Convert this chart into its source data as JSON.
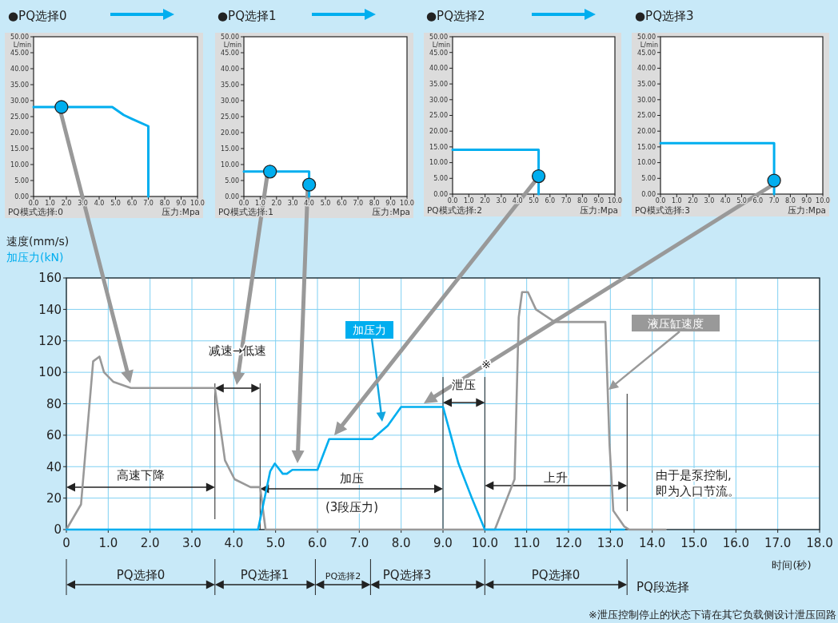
{
  "chart_data": [
    {
      "type": "line",
      "title": "●PQ选择0",
      "xlabel": "压力:Mpa",
      "ylabel": "L/min",
      "annotations": [
        "PQ模式选择:0"
      ],
      "grid": false,
      "legend": false,
      "xlim": [
        0,
        10
      ],
      "ylim": [
        0,
        50
      ],
      "xticks": [
        {
          "value": 0,
          "label": "0.0"
        },
        {
          "value": 1,
          "label": "1.0"
        },
        {
          "value": 2,
          "label": "2.0"
        },
        {
          "value": 3,
          "label": "3.0"
        },
        {
          "value": 4,
          "label": "4.0"
        },
        {
          "value": 5,
          "label": "5.0"
        },
        {
          "value": 6,
          "label": "6.0"
        },
        {
          "value": 7,
          "label": "7.0"
        },
        {
          "value": 8,
          "label": "8.0"
        },
        {
          "value": 9,
          "label": "9.0"
        },
        {
          "value": 10,
          "label": "10.0"
        }
      ],
      "yticks": [
        {
          "value": 0,
          "label": "0.00"
        },
        {
          "value": 5,
          "label": "5.00"
        },
        {
          "value": 10,
          "label": "10.00"
        },
        {
          "value": 15,
          "label": "15.00"
        },
        {
          "value": 20,
          "label": "20.00"
        },
        {
          "value": 25,
          "label": "25.00"
        },
        {
          "value": 30,
          "label": "30.00"
        },
        {
          "value": 35,
          "label": "35.00"
        },
        {
          "value": 40,
          "label": "40.00"
        },
        {
          "value": 45,
          "label": "45.00"
        },
        {
          "value": 50,
          "label": "50.00"
        }
      ],
      "series": [
        {
          "color": "#00aeef",
          "x": [
            0,
            4.8,
            5.5,
            6.0,
            7.0,
            7.0
          ],
          "values": [
            28,
            28,
            25.5,
            24.3,
            22,
            0
          ]
        },
        {
          "type": "scatter",
          "marker": "circle",
          "color": "#00aeef",
          "x": [
            1.7
          ],
          "values": [
            28
          ]
        }
      ]
    },
    {
      "type": "line",
      "title": "●PQ选择1",
      "xlabel": "压力:Mpa",
      "ylabel": "L/min",
      "annotations": [
        "PQ模式选择:1"
      ],
      "grid": false,
      "legend": false,
      "xlim": [
        0,
        10
      ],
      "ylim": [
        0,
        50
      ],
      "xticks": [
        {
          "value": 0,
          "label": "0.0"
        },
        {
          "value": 1,
          "label": "1.0"
        },
        {
          "value": 2,
          "label": "2.0"
        },
        {
          "value": 3,
          "label": "3.0"
        },
        {
          "value": 4,
          "label": "4.0"
        },
        {
          "value": 5,
          "label": "5.0"
        },
        {
          "value": 6,
          "label": "6.0"
        },
        {
          "value": 7,
          "label": "7.0"
        },
        {
          "value": 8,
          "label": "8.0"
        },
        {
          "value": 9,
          "label": "9.0"
        },
        {
          "value": 10,
          "label": "10.0"
        }
      ],
      "yticks": [
        {
          "value": 0,
          "label": "0.00"
        },
        {
          "value": 5,
          "label": "5.00"
        },
        {
          "value": 10,
          "label": "10.00"
        },
        {
          "value": 15,
          "label": "15.00"
        },
        {
          "value": 20,
          "label": "20.00"
        },
        {
          "value": 25,
          "label": "25.00"
        },
        {
          "value": 30,
          "label": "30.00"
        },
        {
          "value": 35,
          "label": "35.00"
        },
        {
          "value": 40,
          "label": "40.00"
        },
        {
          "value": 45,
          "label": "45.00"
        },
        {
          "value": 50,
          "label": "50.00"
        }
      ],
      "series": [
        {
          "color": "#00aeef",
          "x": [
            0,
            4.0,
            4.0
          ],
          "values": [
            7.8,
            7.8,
            0
          ]
        },
        {
          "type": "scatter",
          "marker": "circle",
          "color": "#00aeef",
          "x": [
            1.6,
            4.0
          ],
          "values": [
            7.8,
            3.7
          ]
        }
      ]
    },
    {
      "type": "line",
      "title": "●PQ选择2",
      "xlabel": "压力:Mpa",
      "ylabel": "L/min",
      "annotations": [
        "PQ模式选择:2"
      ],
      "grid": false,
      "legend": false,
      "xlim": [
        0,
        10
      ],
      "ylim": [
        0,
        50
      ],
      "xticks": [
        {
          "value": 0,
          "label": "0.0"
        },
        {
          "value": 1,
          "label": "1.0"
        },
        {
          "value": 2,
          "label": "2.0"
        },
        {
          "value": 3,
          "label": "3.0"
        },
        {
          "value": 4,
          "label": "4.0"
        },
        {
          "value": 5,
          "label": "5.0"
        },
        {
          "value": 6,
          "label": "6.0"
        },
        {
          "value": 7,
          "label": "7.0"
        },
        {
          "value": 8,
          "label": "8.0"
        },
        {
          "value": 9,
          "label": "9.0"
        },
        {
          "value": 10,
          "label": "10.0"
        }
      ],
      "yticks": [
        {
          "value": 0,
          "label": "0.00"
        },
        {
          "value": 5,
          "label": "5.00"
        },
        {
          "value": 10,
          "label": "10.00"
        },
        {
          "value": 15,
          "label": "15.00"
        },
        {
          "value": 20,
          "label": "20.00"
        },
        {
          "value": 25,
          "label": "25.00"
        },
        {
          "value": 30,
          "label": "30.00"
        },
        {
          "value": 35,
          "label": "35.00"
        },
        {
          "value": 40,
          "label": "40.00"
        },
        {
          "value": 45,
          "label": "45.00"
        },
        {
          "value": 50,
          "label": "50.00"
        }
      ],
      "series": [
        {
          "color": "#00aeef",
          "x": [
            0,
            5.3,
            5.3
          ],
          "values": [
            14.1,
            14.1,
            0
          ]
        },
        {
          "type": "scatter",
          "marker": "circle",
          "color": "#00aeef",
          "x": [
            5.3
          ],
          "values": [
            5.7
          ]
        }
      ]
    },
    {
      "type": "line",
      "title": "●PQ选择3",
      "xlabel": "压力:Mpa",
      "ylabel": "L/min",
      "annotations": [
        "PQ模式选择:3"
      ],
      "grid": false,
      "legend": false,
      "xlim": [
        0,
        10
      ],
      "ylim": [
        0,
        50
      ],
      "xticks": [
        {
          "value": 0,
          "label": "0.0"
        },
        {
          "value": 1,
          "label": "1.0"
        },
        {
          "value": 2,
          "label": "2.0"
        },
        {
          "value": 3,
          "label": "3.0"
        },
        {
          "value": 4,
          "label": "4.0"
        },
        {
          "value": 5,
          "label": "5.0"
        },
        {
          "value": 6,
          "label": "6.0"
        },
        {
          "value": 7,
          "label": "7.0"
        },
        {
          "value": 8,
          "label": "8.0"
        },
        {
          "value": 9,
          "label": "9.0"
        },
        {
          "value": 10,
          "label": "10.0"
        }
      ],
      "yticks": [
        {
          "value": 0,
          "label": "0.00"
        },
        {
          "value": 5,
          "label": "5.00"
        },
        {
          "value": 10,
          "label": "10.00"
        },
        {
          "value": 15,
          "label": "15.00"
        },
        {
          "value": 20,
          "label": "20.00"
        },
        {
          "value": 25,
          "label": "25.00"
        },
        {
          "value": 30,
          "label": "30.00"
        },
        {
          "value": 35,
          "label": "35.00"
        },
        {
          "value": 40,
          "label": "40.00"
        },
        {
          "value": 45,
          "label": "45.00"
        },
        {
          "value": 50,
          "label": "50.00"
        }
      ],
      "series": [
        {
          "color": "#00aeef",
          "x": [
            0,
            7.0,
            7.0
          ],
          "values": [
            16.2,
            16.2,
            0
          ]
        },
        {
          "type": "scatter",
          "marker": "circle",
          "color": "#00aeef",
          "x": [
            7.0
          ],
          "values": [
            4.3
          ]
        }
      ]
    },
    {
      "type": "line",
      "xlabel": "时间(秒)",
      "ylabel": "速度(mm/s)\n加压力(kN)",
      "grid": true,
      "legend": false,
      "xlim": [
        0,
        18
      ],
      "ylim": [
        0,
        160
      ],
      "xticks": [
        0,
        {
          "value": 1,
          "label": "1.0"
        },
        {
          "value": 2,
          "label": "2.0"
        },
        {
          "value": 3,
          "label": "3.0"
        },
        {
          "value": 4,
          "label": "4.0"
        },
        {
          "value": 5,
          "label": "5.0"
        },
        {
          "value": 6,
          "label": "6.0"
        },
        {
          "value": 7,
          "label": "7.0"
        },
        {
          "value": 8,
          "label": "8.0"
        },
        {
          "value": 9,
          "label": "9.0"
        },
        {
          "value": 10,
          "label": "10.0"
        },
        {
          "value": 11,
          "label": "11.0"
        },
        {
          "value": 12,
          "label": "12.0"
        },
        {
          "value": 13,
          "label": "13.0"
        },
        {
          "value": 14,
          "label": "14.0"
        },
        {
          "value": 15,
          "label": "15.0"
        },
        {
          "value": 16,
          "label": "16.0"
        },
        {
          "value": 17,
          "label": "17.0"
        },
        {
          "value": 18,
          "label": "18.0"
        }
      ],
      "yticks": [
        0,
        20,
        40,
        60,
        80,
        100,
        120,
        140,
        160
      ],
      "series": [
        {
          "name": "液压缸速度",
          "color": "#999999",
          "x": [
            0,
            0.35,
            0.64,
            0.79,
            0.9,
            1.12,
            1.54,
            3.55,
            3.79,
            4.02,
            4.4,
            4.63,
            4.76,
            10.24,
            10.71,
            10.81,
            10.89,
            11.03,
            11.22,
            11.67,
            12.88,
            12.98,
            13.07,
            13.33,
            13.45,
            14.32
          ],
          "values": [
            0,
            16,
            107,
            110,
            100,
            94,
            90,
            90,
            44,
            32,
            27,
            27,
            0,
            0,
            32,
            135,
            151,
            151,
            140,
            132,
            132,
            54,
            12,
            2,
            0,
            0
          ]
        },
        {
          "name": "加压力",
          "color": "#00aeef",
          "x": [
            0,
            4.58,
            4.87,
            4.98,
            5.17,
            5.27,
            5.4,
            6.0,
            6.28,
            7.31,
            7.68,
            8.0,
            9.0,
            9.37,
            9.69,
            10.0,
            13.33
          ],
          "values": [
            0,
            0,
            37,
            42,
            35.5,
            35.5,
            38,
            38,
            57.5,
            57.5,
            66,
            78,
            78,
            42,
            20,
            0,
            0
          ]
        }
      ],
      "ref_lines": [
        {
          "axis": "x",
          "value": 3.55,
          "color": "#222222"
        },
        {
          "axis": "x",
          "value": 4.63,
          "color": "#222222"
        },
        {
          "axis": "x",
          "value": 9.0,
          "color": "#222222"
        },
        {
          "axis": "x",
          "value": 10.0,
          "color": "#222222"
        },
        {
          "axis": "x",
          "value": 13.4,
          "color": "#222222"
        }
      ],
      "annotations": [
        "※",
        "由于是泵控制,\n即为入口节流。",
        "PQ段选择",
        "※泄压控制停止的状态下请在其它负载侧设计泄压回路",
        "高速下降",
        "减速→低速",
        "加压",
        "(3段压力)",
        "泄压",
        "上升",
        "PQ选择0",
        "PQ选择1",
        "PQ选择2",
        "PQ选择3",
        "PQ选择0"
      ]
    }
  ]
}
